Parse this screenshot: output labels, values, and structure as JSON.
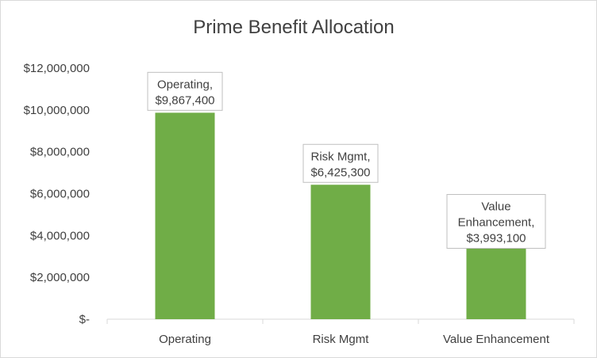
{
  "chart_data": {
    "type": "bar",
    "title": "Prime Benefit Allocation",
    "xlabel": "",
    "ylabel": "",
    "categories": [
      "Operating",
      "Risk Mgmt",
      "Value Enhancement"
    ],
    "values": [
      9867400,
      6425300,
      3993100
    ],
    "value_labels": [
      "$9,867,400",
      "$6,425,300",
      "$3,993,100"
    ],
    "ylim": [
      0,
      12000000
    ],
    "yticks": [
      0,
      2000000,
      4000000,
      6000000,
      8000000,
      10000000,
      12000000
    ],
    "ytick_labels": [
      "$-",
      "$2,000,000",
      "$4,000,000",
      "$6,000,000",
      "$8,000,000",
      "$10,000,000",
      "$12,000,000"
    ],
    "grid": false,
    "legend": "none",
    "bar_color": "#70ad47",
    "data_labels": [
      {
        "lines": [
          "Operating,",
          "$9,867,400"
        ]
      },
      {
        "lines": [
          "Risk Mgmt,",
          "$6,425,300"
        ]
      },
      {
        "lines": [
          "Value",
          "Enhancement,",
          "$3,993,100"
        ]
      }
    ]
  }
}
